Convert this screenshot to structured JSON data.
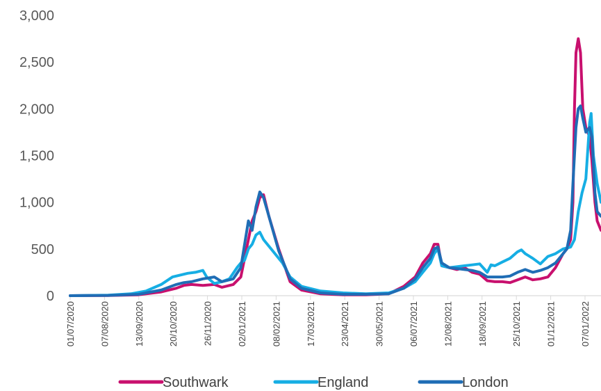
{
  "chart_data": {
    "type": "line",
    "title": "",
    "xlabel": "",
    "ylabel": "",
    "ylim": [
      0,
      3000
    ],
    "yticks": [
      0,
      500,
      1000,
      1500,
      2000,
      2500,
      3000
    ],
    "ytick_labels": [
      "0",
      "500",
      "1,000",
      "1,500",
      "2,000",
      "2,500",
      "3,000"
    ],
    "xtick_labels": [
      "01/07/2020",
      "07/08/2020",
      "13/09/2020",
      "20/10/2020",
      "26/11/2020",
      "02/01/2021",
      "08/02/2021",
      "17/03/2021",
      "23/04/2021",
      "30/05/2021",
      "06/07/2021",
      "12/08/2021",
      "18/09/2021",
      "25/10/2021",
      "01/12/2021",
      "07/01/2022"
    ],
    "grid": false,
    "legend_position": "bottom",
    "series": [
      {
        "name": "Southwark",
        "color": "#c8106e",
        "points": [
          [
            0,
            0
          ],
          [
            50,
            2
          ],
          [
            90,
            10
          ],
          [
            120,
            40
          ],
          [
            140,
            80
          ],
          [
            150,
            110
          ],
          [
            160,
            120
          ],
          [
            175,
            110
          ],
          [
            190,
            120
          ],
          [
            200,
            90
          ],
          [
            215,
            120
          ],
          [
            225,
            200
          ],
          [
            235,
            600
          ],
          [
            240,
            800
          ],
          [
            245,
            900
          ],
          [
            250,
            1050
          ],
          [
            255,
            1080
          ],
          [
            262,
            850
          ],
          [
            275,
            500
          ],
          [
            290,
            150
          ],
          [
            305,
            60
          ],
          [
            330,
            20
          ],
          [
            360,
            10
          ],
          [
            390,
            10
          ],
          [
            420,
            20
          ],
          [
            440,
            100
          ],
          [
            455,
            200
          ],
          [
            465,
            350
          ],
          [
            475,
            450
          ],
          [
            480,
            550
          ],
          [
            485,
            550
          ],
          [
            490,
            320
          ],
          [
            500,
            300
          ],
          [
            510,
            280
          ],
          [
            520,
            300
          ],
          [
            530,
            250
          ],
          [
            540,
            230
          ],
          [
            550,
            160
          ],
          [
            560,
            150
          ],
          [
            570,
            150
          ],
          [
            580,
            140
          ],
          [
            590,
            170
          ],
          [
            600,
            200
          ],
          [
            610,
            170
          ],
          [
            620,
            180
          ],
          [
            630,
            200
          ],
          [
            640,
            300
          ],
          [
            650,
            450
          ],
          [
            655,
            500
          ],
          [
            660,
            600
          ],
          [
            663,
            1000
          ],
          [
            665,
            2000
          ],
          [
            667,
            2600
          ],
          [
            670,
            2750
          ],
          [
            673,
            2600
          ],
          [
            676,
            2000
          ],
          [
            680,
            1800
          ],
          [
            685,
            1700
          ],
          [
            688,
            1450
          ],
          [
            692,
            1000
          ],
          [
            695,
            800
          ],
          [
            700,
            700
          ]
        ]
      },
      {
        "name": "England",
        "color": "#16aee4",
        "points": [
          [
            0,
            0
          ],
          [
            50,
            5
          ],
          [
            80,
            20
          ],
          [
            100,
            50
          ],
          [
            120,
            120
          ],
          [
            135,
            200
          ],
          [
            145,
            220
          ],
          [
            155,
            240
          ],
          [
            165,
            250
          ],
          [
            175,
            270
          ],
          [
            180,
            200
          ],
          [
            190,
            130
          ],
          [
            200,
            150
          ],
          [
            210,
            180
          ],
          [
            220,
            300
          ],
          [
            225,
            350
          ],
          [
            230,
            380
          ],
          [
            235,
            500
          ],
          [
            240,
            550
          ],
          [
            245,
            650
          ],
          [
            250,
            680
          ],
          [
            255,
            600
          ],
          [
            265,
            500
          ],
          [
            280,
            350
          ],
          [
            290,
            200
          ],
          [
            305,
            100
          ],
          [
            330,
            50
          ],
          [
            360,
            30
          ],
          [
            390,
            20
          ],
          [
            420,
            30
          ],
          [
            440,
            80
          ],
          [
            455,
            150
          ],
          [
            465,
            250
          ],
          [
            475,
            350
          ],
          [
            480,
            450
          ],
          [
            485,
            500
          ],
          [
            490,
            320
          ],
          [
            500,
            300
          ],
          [
            510,
            310
          ],
          [
            520,
            320
          ],
          [
            530,
            330
          ],
          [
            540,
            340
          ],
          [
            550,
            250
          ],
          [
            555,
            330
          ],
          [
            560,
            320
          ],
          [
            570,
            360
          ],
          [
            580,
            400
          ],
          [
            590,
            470
          ],
          [
            595,
            490
          ],
          [
            600,
            450
          ],
          [
            610,
            400
          ],
          [
            620,
            340
          ],
          [
            630,
            420
          ],
          [
            640,
            450
          ],
          [
            650,
            500
          ],
          [
            655,
            510
          ],
          [
            660,
            520
          ],
          [
            665,
            600
          ],
          [
            670,
            900
          ],
          [
            675,
            1100
          ],
          [
            680,
            1250
          ],
          [
            685,
            1850
          ],
          [
            687,
            1950
          ],
          [
            690,
            1500
          ],
          [
            695,
            1200
          ],
          [
            700,
            1000
          ]
        ]
      },
      {
        "name": "London",
        "color": "#1f6db5",
        "points": [
          [
            0,
            0
          ],
          [
            50,
            3
          ],
          [
            90,
            15
          ],
          [
            120,
            60
          ],
          [
            140,
            120
          ],
          [
            150,
            140
          ],
          [
            160,
            150
          ],
          [
            175,
            180
          ],
          [
            190,
            200
          ],
          [
            200,
            150
          ],
          [
            215,
            180
          ],
          [
            225,
            300
          ],
          [
            235,
            800
          ],
          [
            240,
            700
          ],
          [
            245,
            950
          ],
          [
            250,
            1110
          ],
          [
            255,
            1050
          ],
          [
            262,
            850
          ],
          [
            275,
            480
          ],
          [
            290,
            180
          ],
          [
            305,
            80
          ],
          [
            330,
            30
          ],
          [
            360,
            15
          ],
          [
            390,
            15
          ],
          [
            420,
            20
          ],
          [
            440,
            80
          ],
          [
            455,
            180
          ],
          [
            465,
            300
          ],
          [
            475,
            400
          ],
          [
            480,
            500
          ],
          [
            485,
            520
          ],
          [
            490,
            350
          ],
          [
            500,
            300
          ],
          [
            510,
            290
          ],
          [
            520,
            280
          ],
          [
            530,
            270
          ],
          [
            540,
            250
          ],
          [
            550,
            200
          ],
          [
            560,
            200
          ],
          [
            570,
            200
          ],
          [
            580,
            210
          ],
          [
            590,
            250
          ],
          [
            600,
            280
          ],
          [
            610,
            250
          ],
          [
            620,
            270
          ],
          [
            630,
            300
          ],
          [
            640,
            350
          ],
          [
            650,
            450
          ],
          [
            655,
            500
          ],
          [
            660,
            700
          ],
          [
            663,
            1200
          ],
          [
            667,
            1800
          ],
          [
            670,
            2000
          ],
          [
            673,
            2030
          ],
          [
            676,
            1900
          ],
          [
            680,
            1750
          ],
          [
            685,
            1800
          ],
          [
            688,
            1700
          ],
          [
            692,
            1100
          ],
          [
            695,
            900
          ],
          [
            700,
            850
          ]
        ]
      }
    ]
  }
}
